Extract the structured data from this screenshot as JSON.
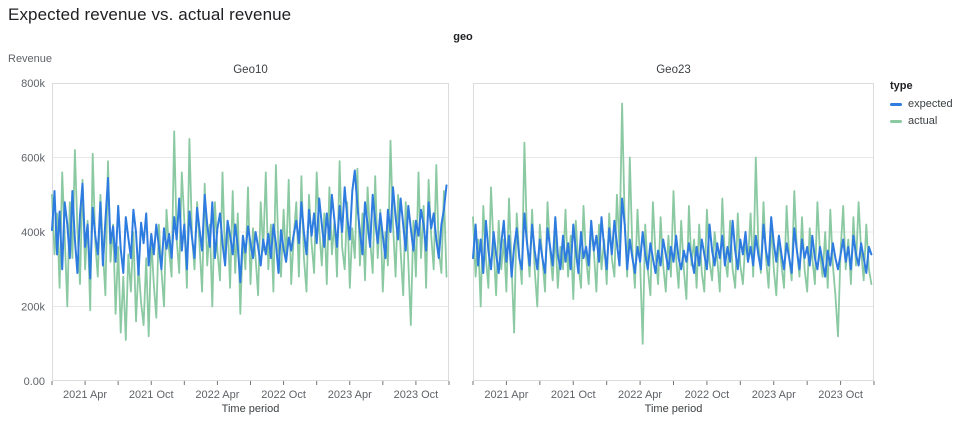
{
  "page": {
    "title": "Expected revenue vs. actual revenue"
  },
  "facet_header": "geo",
  "legend": {
    "title": "type",
    "items": [
      {
        "label": "expected",
        "color": "#2e7ce0"
      },
      {
        "label": "actual",
        "color": "#8bc9a2"
      }
    ]
  },
  "chart_data": {
    "type": "line",
    "title": "Expected revenue vs. actual revenue",
    "xlabel": "Time period",
    "ylabel": "Revenue",
    "values_unit": "thousands",
    "ylim": [
      0,
      800
    ],
    "grid": true,
    "legend_position": "right",
    "colors": {
      "expected": "#2e7ce0",
      "actual": "#8bc9a2"
    },
    "x_domain_months": 36,
    "x_start": "2021 Jan",
    "x_end": "2023 Dec",
    "x_tick_months": [
      0,
      3,
      6,
      9,
      12,
      15,
      18,
      21,
      24,
      27,
      30,
      33,
      36
    ],
    "x_label_months": [
      3,
      9,
      15,
      21,
      27,
      33
    ],
    "x_tick_labels": [
      "2021 Apr",
      "2021 Oct",
      "2022 Apr",
      "2022 Oct",
      "2023 Apr",
      "2023 Oct"
    ],
    "y_ticks": {
      "values": [
        800,
        600,
        400,
        200,
        0
      ],
      "labels": [
        "800k",
        "600k",
        "400k",
        "200k",
        "0.00"
      ]
    },
    "facets": [
      {
        "name": "Geo10",
        "series": [
          {
            "name": "expected",
            "values": [
              405,
              510,
              340,
              455,
              300,
              480,
              420,
              330,
              510,
              380,
              290,
              445,
              530,
              360,
              420,
              275,
              465,
              390,
              340,
              480,
              310,
              430,
              545,
              370,
              415,
              320,
              470,
              355,
              290,
              440,
              385,
              330,
              460,
              400,
              285,
              425,
              370,
              450,
              310,
              395,
              340,
              420,
              360,
              300,
              410,
              355,
              395,
              330,
              440,
              380,
              490,
              350,
              420,
              300,
              455,
              385,
              330,
              465,
              405,
              350,
              500,
              420,
              360,
              480,
              330,
              410,
              450,
              370,
              310,
              430,
              390,
              340,
              420,
              360,
              265,
              390,
              345,
              415,
              370,
              330,
              400,
              360,
              310,
              380,
              340,
              395,
              330,
              420,
              370,
              290,
              405,
              355,
              320,
              385,
              350,
              395,
              430,
              370,
              480,
              400,
              340,
              460,
              390,
              450,
              370,
              490,
              420,
              360,
              450,
              380,
              500,
              430,
              360,
              470,
              400,
              520,
              440,
              380,
              510,
              565,
              470,
              400,
              340,
              480,
              420,
              360,
              500,
              430,
              370,
              450,
              390,
              330,
              460,
              400,
              520,
              440,
              380,
              490,
              420,
              350,
              470,
              410,
              350,
              430,
              390,
              460,
              420,
              350,
              480,
              410,
              450,
              380,
              330,
              420,
              460,
              525
            ]
          },
          {
            "name": "actual",
            "values": [
              500,
              340,
              450,
              250,
              560,
              390,
              200,
              480,
              330,
              620,
              410,
              260,
              540,
              300,
              430,
              190,
              610,
              370,
              280,
              500,
              350,
              230,
              590,
              320,
              420,
              180,
              360,
              130,
              280,
              110,
              340,
              240,
              400,
              160,
              310,
              210,
              150,
              330,
              120,
              380,
              260,
              170,
              420,
              300,
              200,
              460,
              350,
              280,
              670,
              380,
              290,
              560,
              430,
              250,
              650,
              390,
              300,
              480,
              360,
              240,
              530,
              310,
              420,
              200,
              480,
              350,
              270,
              560,
              330,
              430,
              250,
              510,
              290,
              450,
              180,
              390,
              300,
              520,
              260,
              410,
              330,
              230,
              480,
              350,
              560,
              300,
              420,
              240,
              580,
              350,
              280,
              460,
              320,
              540,
              260,
              390,
              480,
              280,
              550,
              330,
              240,
              500,
              370,
              290,
              560,
              410,
              310,
              450,
              260,
              520,
              340,
              430,
              280,
              590,
              360,
              300,
              480,
              250,
              410,
              330,
              570,
              310,
              450,
              270,
              520,
              380,
              290,
              550,
              330,
              460,
              240,
              400,
              310,
              645,
              420,
              280,
              500,
              350,
              230,
              480,
              320,
              150,
              430,
              280,
              560,
              330,
              470,
              250,
              540,
              390,
              300,
              580,
              350,
              290,
              510,
              280
            ]
          }
        ]
      },
      {
        "name": "Geo23",
        "series": [
          {
            "name": "expected",
            "values": [
              330,
              420,
              310,
              380,
              290,
              430,
              350,
              300,
              400,
              340,
              290,
              370,
              430,
              320,
              390,
              280,
              360,
              410,
              330,
              300,
              450,
              370,
              310,
              420,
              350,
              300,
              380,
              330,
              290,
              410,
              360,
              310,
              440,
              340,
              300,
              390,
              320,
              370,
              300,
              420,
              350,
              290,
              400,
              330,
              360,
              310,
              430,
              350,
              390,
              320,
              440,
              360,
              300,
              410,
              340,
              430,
              370,
              310,
              490,
              420,
              300,
              380,
              330,
              290,
              360,
              320,
              400,
              340,
              300,
              370,
              330,
              290,
              350,
              310,
              380,
              340,
              300,
              360,
              320,
              390,
              330,
              300,
              350,
              320,
              370,
              330,
              290,
              360,
              310,
              380,
              340,
              300,
              420,
              350,
              310,
              370,
              330,
              390,
              310,
              360,
              320,
              430,
              350,
              300,
              380,
              340,
              400,
              320,
              360,
              310,
              390,
              340,
              300,
              420,
              350,
              310,
              440,
              370,
              320,
              390,
              340,
              300,
              370,
              330,
              290,
              410,
              350,
              300,
              380,
              330,
              360,
              310,
              390,
              330,
              300,
              360,
              320,
              280,
              350,
              310,
              370,
              330,
              300,
              340,
              380,
              320,
              360,
              300,
              390,
              340,
              310,
              370,
              330,
              290,
              360,
              340
            ]
          },
          {
            "name": "actual",
            "values": [
              440,
              280,
              380,
              200,
              470,
              330,
              250,
              520,
              360,
              230,
              430,
              300,
              380,
              240,
              490,
              310,
              130,
              450,
              340,
              260,
              640,
              380,
              280,
              460,
              300,
              200,
              420,
              330,
              240,
              480,
              350,
              270,
              400,
              250,
              360,
              300,
              460,
              280,
              390,
              220,
              430,
              310,
              250,
              470,
              330,
              260,
              410,
              350,
              240,
              420,
              300,
              380,
              260,
              450,
              330,
              280,
              500,
              360,
              745,
              430,
              280,
              600,
              350,
              250,
              460,
              320,
              100,
              420,
              300,
              230,
              480,
              340,
              260,
              440,
              310,
              240,
              390,
              280,
              510,
              330,
              250,
              430,
              300,
              220,
              470,
              310,
              380,
              250,
              420,
              290,
              240,
              460,
              320,
              270,
              400,
              330,
              240,
              490,
              330,
              280,
              430,
              300,
              250,
              450,
              310,
              260,
              380,
              320,
              450,
              280,
              600,
              370,
              290,
              480,
              330,
              250,
              420,
              300,
              230,
              390,
              310,
              250,
              470,
              330,
              270,
              510,
              350,
              280,
              440,
              300,
              240,
              410,
              330,
              260,
              480,
              340,
              280,
              400,
              250,
              460,
              310,
              230,
              120,
              350,
              470,
              300,
              380,
              260,
              440,
              310,
              480,
              350,
              270,
              420,
              300,
              260
            ]
          }
        ]
      }
    ]
  },
  "style": {
    "border_color": "#dadce0",
    "grid_color": "#e8e8e8",
    "tick_color": "#757575",
    "tick_label_color": "#5f6368",
    "axis_title_color": "#3c4043",
    "facet_title_color": "#3c4043"
  }
}
